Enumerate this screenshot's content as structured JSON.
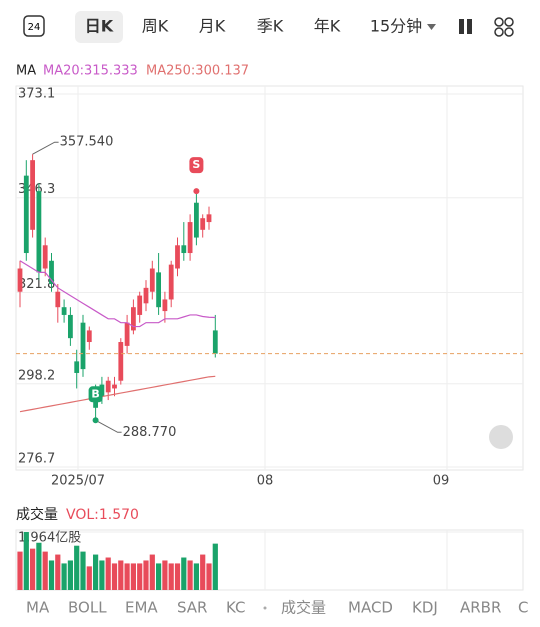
{
  "tabs": {
    "icon": "24",
    "items": [
      "日K",
      "周K",
      "月K",
      "季K",
      "年K",
      "15分钟"
    ]
  },
  "bottom_tabs": {
    "left": [
      "MA",
      "BOLL",
      "EMA",
      "SAR",
      "KC"
    ],
    "right": [
      "成交量",
      "MACD",
      "KDJ",
      "ARBR",
      "C"
    ]
  },
  "chart_data": [
    {
      "type": "candlestick",
      "legend": {
        "name": "MA",
        "ma20": "MA20:315.333",
        "ma250": "MA250:300.137"
      },
      "ylim": [
        276.7,
        373.1
      ],
      "yticks": [
        373.1,
        346.3,
        321.8,
        298.2,
        276.7
      ],
      "x_labels": [
        "2025/07",
        "08",
        "09"
      ],
      "up_color": "#e84b5a",
      "down_color": "#1aa36a",
      "open": [
        322,
        352,
        338,
        348,
        328,
        330,
        318,
        318,
        316,
        304,
        314,
        309,
        296,
        298,
        296,
        297,
        299,
        308,
        312,
        316,
        319,
        322,
        327,
        317,
        320,
        328,
        334,
        332,
        345,
        338,
        340,
        312
      ],
      "high": [
        330,
        356,
        357.54,
        350,
        336,
        332,
        324,
        320,
        318,
        307,
        316,
        313,
        298,
        300,
        300,
        300,
        310,
        316,
        320,
        322,
        325,
        330,
        332,
        322,
        330,
        336,
        340,
        342,
        348,
        342,
        344,
        316
      ],
      "low": [
        318,
        330,
        336,
        325,
        326,
        322,
        314,
        314,
        308,
        297,
        300,
        307,
        288.77,
        293,
        294,
        295,
        298,
        306,
        311,
        314,
        317,
        320,
        316,
        314,
        318,
        326,
        330,
        330,
        334,
        336,
        338,
        305
      ],
      "close": [
        328,
        332,
        356,
        327,
        334,
        324,
        322,
        316,
        310,
        301,
        302,
        312,
        292,
        295,
        299,
        298,
        309,
        314,
        318,
        321,
        323,
        328,
        318,
        320,
        329,
        334,
        332,
        340,
        336,
        341,
        342,
        306
      ],
      "ma20": [
        330,
        329,
        328,
        327,
        327,
        325,
        323,
        322,
        321,
        320,
        319,
        318,
        317,
        316,
        315,
        315,
        314,
        314,
        313,
        313,
        314,
        314,
        314,
        315,
        315,
        315,
        315.5,
        316,
        316,
        315.6,
        315.4,
        315.333
      ],
      "ma250": [
        291,
        291.3,
        291.6,
        291.9,
        292.2,
        292.5,
        292.8,
        293.1,
        293.4,
        293.7,
        294,
        294.3,
        294.6,
        294.9,
        295.2,
        295.5,
        295.8,
        296.1,
        296.4,
        296.7,
        297,
        297.3,
        297.6,
        297.9,
        298.2,
        298.5,
        298.8,
        299.1,
        299.4,
        299.7,
        300,
        300.137
      ],
      "ma20_color": "#c85ac8",
      "ma250_color": "#e0706f",
      "annotations": [
        {
          "label": "357.540",
          "index": 2
        },
        {
          "label": "288.770",
          "index": 12
        }
      ],
      "markers": [
        {
          "label": "B",
          "index": 12
        },
        {
          "label": "S",
          "index": 28
        }
      ]
    },
    {
      "type": "bar",
      "title": "成交量",
      "vol_label": "VOL:1.570",
      "ylim": [
        0,
        1.964
      ],
      "yticks": [
        {
          "value": 1.964,
          "label": "1.964亿股"
        }
      ],
      "values": [
        1.3,
        1.964,
        1.4,
        1.6,
        1.3,
        1.0,
        1.2,
        0.9,
        1.0,
        1.5,
        1.3,
        0.8,
        1.2,
        1.0,
        1.1,
        0.9,
        1.0,
        0.9,
        0.9,
        0.9,
        1.0,
        1.2,
        0.9,
        1.0,
        0.9,
        0.9,
        1.1,
        1.0,
        0.9,
        1.2,
        0.9,
        1.57
      ]
    }
  ]
}
